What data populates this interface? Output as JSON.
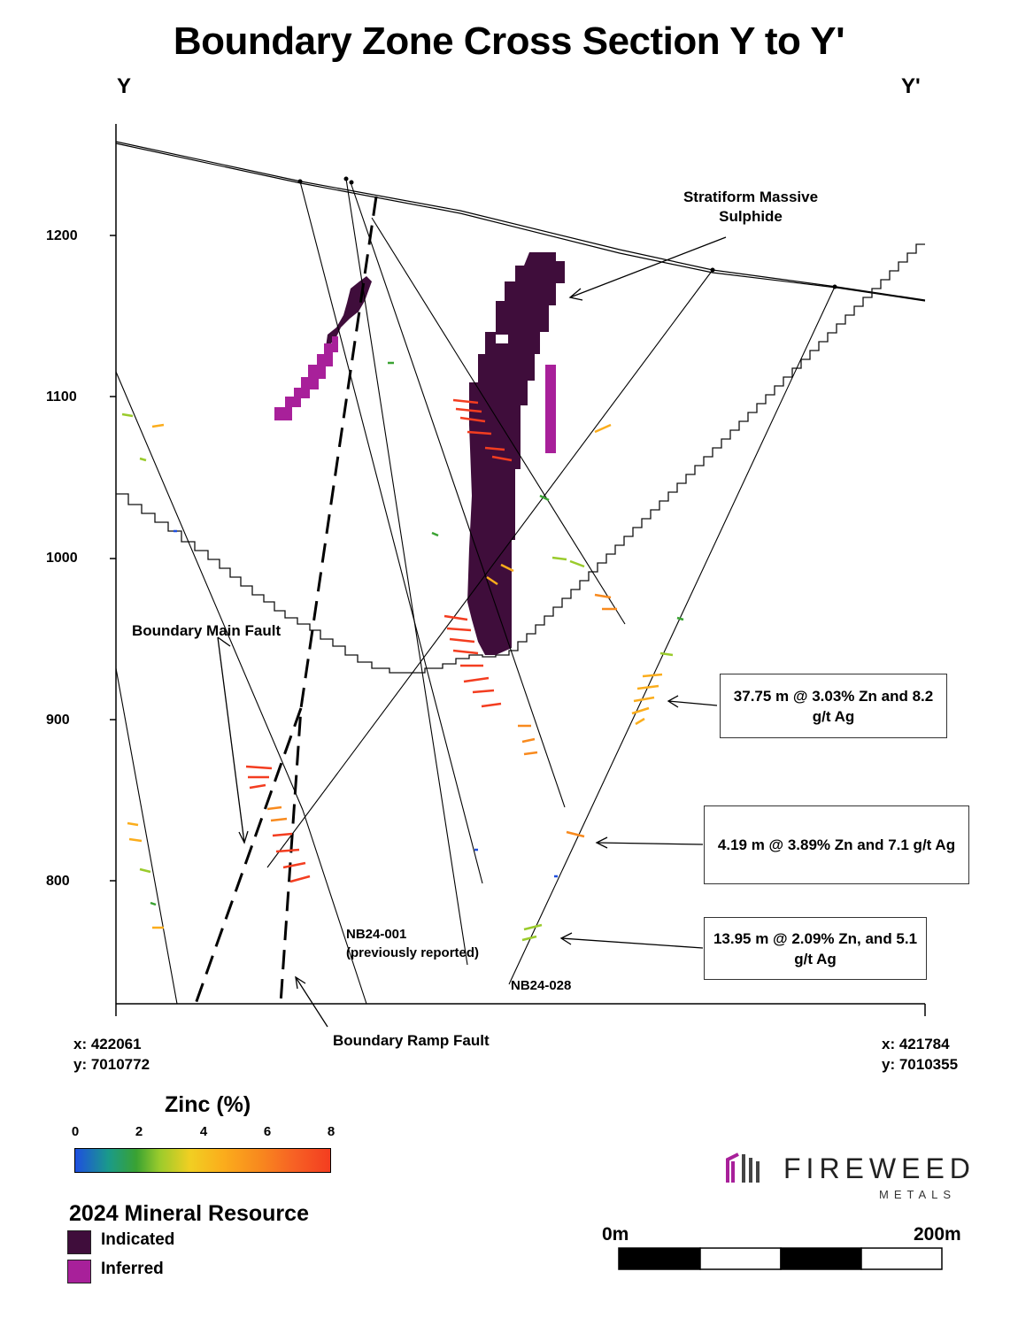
{
  "title": "Boundary Zone Cross Section Y to Y'",
  "section_ends": {
    "left": "Y",
    "right": "Y'"
  },
  "y_axis_ticks": [
    "1200",
    "1100",
    "1000",
    "900",
    "800"
  ],
  "coordinates": {
    "left": {
      "x": "x: 422061",
      "y": "y: 7010772"
    },
    "right": {
      "x": "x: 421784",
      "y": "y: 7010355"
    }
  },
  "annotations": {
    "stratiform": [
      "Stratiform Massive",
      "Sulphide"
    ],
    "main_fault": "Boundary Main Fault",
    "ramp_fault": "Boundary Ramp Fault",
    "hole_001": [
      "NB24-001",
      "(previously reported)"
    ],
    "hole_028": "NB24-028"
  },
  "callouts": [
    "37.75 m @ 3.03% Zn and 8.2 g/t Ag",
    "4.19 m @ 3.89% Zn and 7.1 g/t Ag",
    "13.95 m @ 2.09% Zn, and 5.1 g/t Ag"
  ],
  "legend": {
    "zinc_title": "Zinc (%)",
    "zinc_ticks": [
      "0",
      "2",
      "4",
      "6",
      "8"
    ],
    "resource_title": "2024 Mineral Resource",
    "indicated": "Indicated",
    "inferred": "Inferred"
  },
  "brand": {
    "name": "FIREWEED",
    "sub": "METALS"
  },
  "scale_bar": {
    "start": "0m",
    "end": "200m"
  },
  "colors": {
    "indicated": "#3f0d3b",
    "inferred": "#a8209a",
    "high_zinc": "#f33d20",
    "mid_zinc": "#fbad1c",
    "low_zinc": "#3aa232"
  }
}
